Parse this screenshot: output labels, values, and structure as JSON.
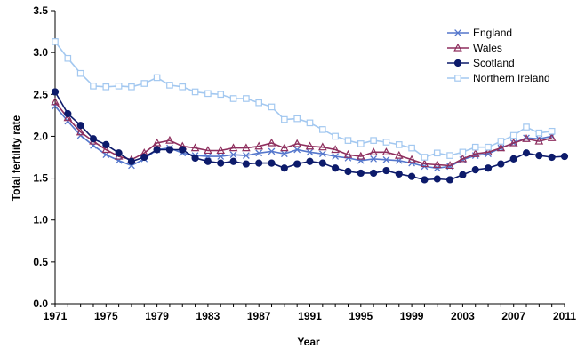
{
  "chart_data": {
    "type": "line",
    "title": "",
    "xlabel": "Year",
    "ylabel": "Total fertility rate",
    "xlim": [
      1971,
      2011
    ],
    "ylim": [
      0,
      3.5
    ],
    "x_ticks": [
      "1971",
      "1975",
      "1979",
      "1983",
      "1987",
      "1991",
      "1995",
      "1999",
      "2003",
      "2007",
      "2011"
    ],
    "y_ticks": [
      "0.0",
      "0.5",
      "1.0",
      "1.5",
      "2.0",
      "2.5",
      "3.0",
      "3.5"
    ],
    "grid": false,
    "legend_position": "top-right",
    "x": [
      1971,
      1972,
      1973,
      1974,
      1975,
      1976,
      1977,
      1978,
      1979,
      1980,
      1981,
      1982,
      1983,
      1984,
      1985,
      1986,
      1987,
      1988,
      1989,
      1990,
      1991,
      1992,
      1993,
      1994,
      1995,
      1996,
      1997,
      1998,
      1999,
      2000,
      2001,
      2002,
      2003,
      2004,
      2005,
      2006,
      2007,
      2008,
      2009,
      2010,
      2011
    ],
    "series": [
      {
        "name": "England",
        "color": "#5577cc",
        "marker": "x",
        "values": [
          2.36,
          2.18,
          2.01,
          1.89,
          1.78,
          1.71,
          1.65,
          1.73,
          1.84,
          1.86,
          1.8,
          1.77,
          1.76,
          1.76,
          1.78,
          1.77,
          1.8,
          1.82,
          1.79,
          1.84,
          1.81,
          1.79,
          1.76,
          1.74,
          1.71,
          1.73,
          1.72,
          1.71,
          1.68,
          1.64,
          1.62,
          1.64,
          1.72,
          1.77,
          1.79,
          1.86,
          1.92,
          1.98,
          1.97,
          2.0,
          null
        ]
      },
      {
        "name": "Wales",
        "color": "#8e2f5e",
        "marker": "triangle",
        "values": [
          2.41,
          2.22,
          2.05,
          1.94,
          1.84,
          1.76,
          1.72,
          1.8,
          1.92,
          1.95,
          1.88,
          1.86,
          1.83,
          1.83,
          1.86,
          1.86,
          1.88,
          1.92,
          1.86,
          1.91,
          1.88,
          1.87,
          1.84,
          1.78,
          1.76,
          1.81,
          1.81,
          1.77,
          1.72,
          1.67,
          1.66,
          1.65,
          1.73,
          1.79,
          1.81,
          1.86,
          1.92,
          1.97,
          1.94,
          1.98,
          null
        ]
      },
      {
        "name": "Scotland",
        "color": "#0d1b6b",
        "marker": "circle",
        "values": [
          2.53,
          2.27,
          2.13,
          1.97,
          1.9,
          1.8,
          1.7,
          1.75,
          1.84,
          1.84,
          1.84,
          1.74,
          1.7,
          1.68,
          1.7,
          1.67,
          1.68,
          1.68,
          1.62,
          1.67,
          1.7,
          1.68,
          1.62,
          1.58,
          1.56,
          1.56,
          1.59,
          1.55,
          1.52,
          1.48,
          1.49,
          1.48,
          1.54,
          1.6,
          1.62,
          1.67,
          1.73,
          1.8,
          1.77,
          1.75,
          1.76
        ]
      },
      {
        "name": "Northern Ireland",
        "color": "#a3c8f0",
        "marker": "square",
        "values": [
          3.13,
          2.93,
          2.75,
          2.6,
          2.59,
          2.6,
          2.59,
          2.63,
          2.7,
          2.61,
          2.59,
          2.53,
          2.51,
          2.5,
          2.45,
          2.45,
          2.4,
          2.35,
          2.2,
          2.21,
          2.16,
          2.08,
          2.0,
          1.95,
          1.91,
          1.95,
          1.93,
          1.9,
          1.86,
          1.75,
          1.8,
          1.77,
          1.81,
          1.87,
          1.87,
          1.94,
          2.01,
          2.11,
          2.04,
          2.06,
          null
        ]
      }
    ]
  }
}
